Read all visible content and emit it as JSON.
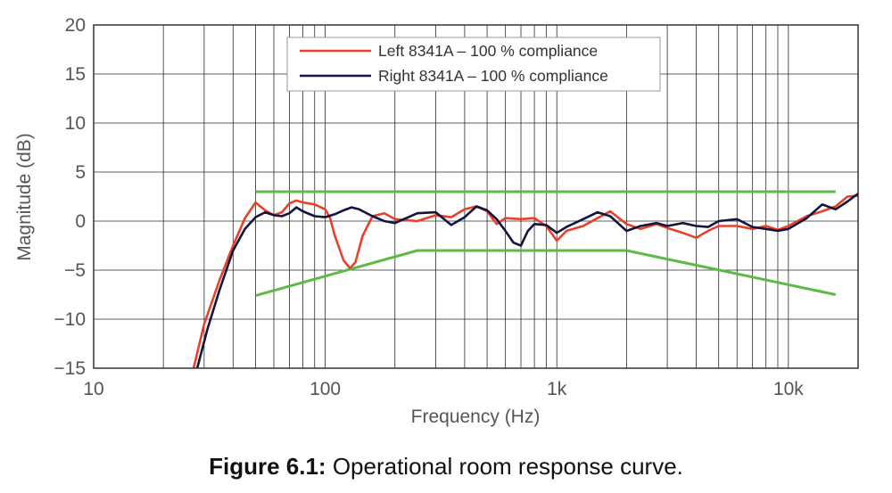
{
  "chart_data": {
    "type": "line",
    "xscale": "log",
    "xlim": [
      10,
      20000
    ],
    "ylim": [
      -15,
      20
    ],
    "xlabel": "Frequency (Hz)",
    "ylabel": "Magnitude (dB)",
    "grid": true,
    "legend_position": "top-center",
    "x_ticks": [
      {
        "value": 10,
        "label": "10"
      },
      {
        "value": 100,
        "label": "100"
      },
      {
        "value": 1000,
        "label": "1k"
      },
      {
        "value": 10000,
        "label": "10k"
      }
    ],
    "y_ticks": [
      {
        "value": 20,
        "label": "20"
      },
      {
        "value": 15,
        "label": "15"
      },
      {
        "value": 10,
        "label": "10"
      },
      {
        "value": 5,
        "label": "5"
      },
      {
        "value": 0,
        "label": "0"
      },
      {
        "value": -5,
        "label": "−5"
      },
      {
        "value": -10,
        "label": "−10"
      },
      {
        "value": -15,
        "label": "−15"
      }
    ],
    "series": [
      {
        "name": "Left 8341A – 100 % compliance",
        "color": "#e8402a",
        "legend": true,
        "points": [
          [
            27,
            -15
          ],
          [
            30,
            -10.5
          ],
          [
            35,
            -6
          ],
          [
            40,
            -2.5
          ],
          [
            45,
            0.3
          ],
          [
            50,
            1.9
          ],
          [
            55,
            1.1
          ],
          [
            60,
            0.6
          ],
          [
            65,
            0.9
          ],
          [
            70,
            1.8
          ],
          [
            75,
            2.1
          ],
          [
            80,
            1.9
          ],
          [
            90,
            1.7
          ],
          [
            100,
            1.2
          ],
          [
            105,
            0.3
          ],
          [
            110,
            -1.5
          ],
          [
            120,
            -4
          ],
          [
            128,
            -4.8
          ],
          [
            135,
            -4.2
          ],
          [
            145,
            -1.5
          ],
          [
            160,
            0.5
          ],
          [
            180,
            0.8
          ],
          [
            200,
            0.2
          ],
          [
            250,
            0
          ],
          [
            300,
            0.6
          ],
          [
            350,
            0.4
          ],
          [
            400,
            1.2
          ],
          [
            450,
            1.5
          ],
          [
            500,
            1
          ],
          [
            550,
            -0.3
          ],
          [
            600,
            0.3
          ],
          [
            700,
            0.2
          ],
          [
            800,
            0.3
          ],
          [
            900,
            -0.5
          ],
          [
            1000,
            -2
          ],
          [
            1100,
            -1
          ],
          [
            1300,
            -0.5
          ],
          [
            1500,
            0.3
          ],
          [
            1700,
            1
          ],
          [
            2000,
            -0.3
          ],
          [
            2300,
            -0.8
          ],
          [
            2700,
            -0.3
          ],
          [
            3000,
            -0.7
          ],
          [
            3500,
            -1.2
          ],
          [
            4000,
            -1.7
          ],
          [
            4500,
            -1
          ],
          [
            5000,
            -0.5
          ],
          [
            6000,
            -0.5
          ],
          [
            7000,
            -0.8
          ],
          [
            8000,
            -0.5
          ],
          [
            9000,
            -0.9
          ],
          [
            10000,
            -0.5
          ],
          [
            12000,
            0.5
          ],
          [
            14000,
            1
          ],
          [
            16000,
            1.5
          ],
          [
            18000,
            2.5
          ],
          [
            20000,
            2.6
          ]
        ]
      },
      {
        "name": "Right 8341A – 100 % compliance",
        "color": "#141440",
        "legend": true,
        "points": [
          [
            28,
            -15
          ],
          [
            31,
            -11
          ],
          [
            35,
            -7
          ],
          [
            40,
            -3
          ],
          [
            45,
            -0.8
          ],
          [
            50,
            0.4
          ],
          [
            55,
            0.9
          ],
          [
            60,
            0.6
          ],
          [
            65,
            0.5
          ],
          [
            70,
            0.8
          ],
          [
            75,
            1.4
          ],
          [
            80,
            1
          ],
          [
            90,
            0.5
          ],
          [
            100,
            0.4
          ],
          [
            110,
            0.7
          ],
          [
            120,
            1.1
          ],
          [
            130,
            1.4
          ],
          [
            140,
            1.2
          ],
          [
            160,
            0.5
          ],
          [
            180,
            0
          ],
          [
            200,
            -0.2
          ],
          [
            250,
            0.8
          ],
          [
            300,
            0.9
          ],
          [
            350,
            -0.4
          ],
          [
            400,
            0.4
          ],
          [
            450,
            1.5
          ],
          [
            500,
            1.1
          ],
          [
            550,
            0.2
          ],
          [
            600,
            -1
          ],
          [
            650,
            -2.2
          ],
          [
            700,
            -2.5
          ],
          [
            750,
            -1
          ],
          [
            800,
            -0.3
          ],
          [
            900,
            -0.4
          ],
          [
            1000,
            -1.2
          ],
          [
            1100,
            -0.6
          ],
          [
            1300,
            0.2
          ],
          [
            1500,
            0.9
          ],
          [
            1700,
            0.5
          ],
          [
            2000,
            -1
          ],
          [
            2300,
            -0.5
          ],
          [
            2700,
            -0.2
          ],
          [
            3000,
            -0.5
          ],
          [
            3500,
            -0.2
          ],
          [
            4000,
            -0.5
          ],
          [
            4500,
            -0.6
          ],
          [
            5000,
            0
          ],
          [
            6000,
            0.2
          ],
          [
            7000,
            -0.6
          ],
          [
            8000,
            -0.8
          ],
          [
            9000,
            -1
          ],
          [
            10000,
            -0.8
          ],
          [
            12000,
            0.3
          ],
          [
            14000,
            1.7
          ],
          [
            16000,
            1.2
          ],
          [
            18000,
            2
          ],
          [
            20000,
            2.8
          ]
        ]
      },
      {
        "name": "",
        "color": "#5cba47",
        "legend": false,
        "points": [
          [
            50,
            3
          ],
          [
            16000,
            3
          ]
        ]
      },
      {
        "name": "",
        "color": "#5cba47",
        "legend": false,
        "points": [
          [
            50,
            -7.6
          ],
          [
            250,
            -3
          ],
          [
            2000,
            -3
          ],
          [
            16000,
            -7.5
          ]
        ]
      }
    ]
  },
  "caption": {
    "label": "Figure 6.1:",
    "text": "Operational room response curve."
  }
}
